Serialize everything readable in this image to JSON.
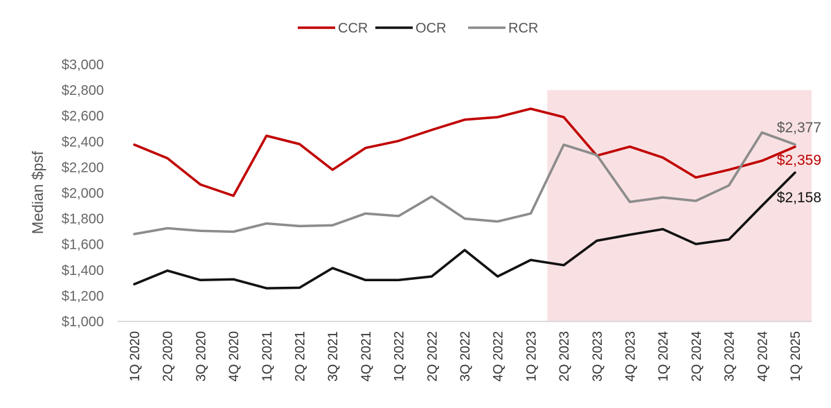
{
  "chart_data": {
    "type": "line",
    "title": "",
    "xlabel": "",
    "ylabel": "Median $psf",
    "ylim": [
      1000,
      3000
    ],
    "yticks": [
      1000,
      1200,
      1400,
      1600,
      1800,
      2000,
      2200,
      2400,
      2600,
      2800,
      3000
    ],
    "ytick_labels": [
      "$1,000",
      "$1,200",
      "$1,400",
      "$1,600",
      "$1,800",
      "$2,000",
      "$2,200",
      "$2,400",
      "$2,600",
      "$2,800",
      "$3,000"
    ],
    "legend_position": "top-center",
    "grid": false,
    "categories": [
      "1Q 2020",
      "2Q 2020",
      "3Q 2020",
      "4Q 2020",
      "1Q 2021",
      "2Q 2021",
      "3Q 2021",
      "4Q 2021",
      "1Q 2022",
      "2Q 2022",
      "3Q 2022",
      "4Q 2022",
      "1Q 2023",
      "2Q 2023",
      "3Q 2023",
      "4Q 2023",
      "1Q 2024",
      "2Q 2024",
      "3Q 2024",
      "4Q 2024",
      "1Q 2025"
    ],
    "highlight_region": {
      "from": "2Q 2023",
      "to": "1Q 2025",
      "color": "#f9e1e3"
    },
    "series": [
      {
        "name": "CCR",
        "color": "#c00000",
        "values": [
          2375,
          2270,
          2065,
          1978,
          2445,
          2380,
          2180,
          2350,
          2405,
          2490,
          2570,
          2590,
          2655,
          2590,
          2290,
          2360,
          2275,
          2120,
          2180,
          2250,
          2359
        ],
        "end_label": "$2,359"
      },
      {
        "name": "OCR",
        "color": "#111111",
        "values": [
          1290,
          1395,
          1322,
          1328,
          1258,
          1262,
          1415,
          1322,
          1322,
          1350,
          1555,
          1350,
          1478,
          1438,
          1628,
          1675,
          1718,
          1602,
          1638,
          1900,
          2158
        ],
        "end_label": "$2,158"
      },
      {
        "name": "RCR",
        "color": "#8c8c8c",
        "values": [
          1680,
          1725,
          1705,
          1698,
          1762,
          1742,
          1748,
          1840,
          1820,
          1972,
          1800,
          1778,
          1840,
          2375,
          2295,
          1930,
          1965,
          1938,
          2058,
          2470,
          2377
        ],
        "end_label": "$2,377"
      }
    ]
  }
}
